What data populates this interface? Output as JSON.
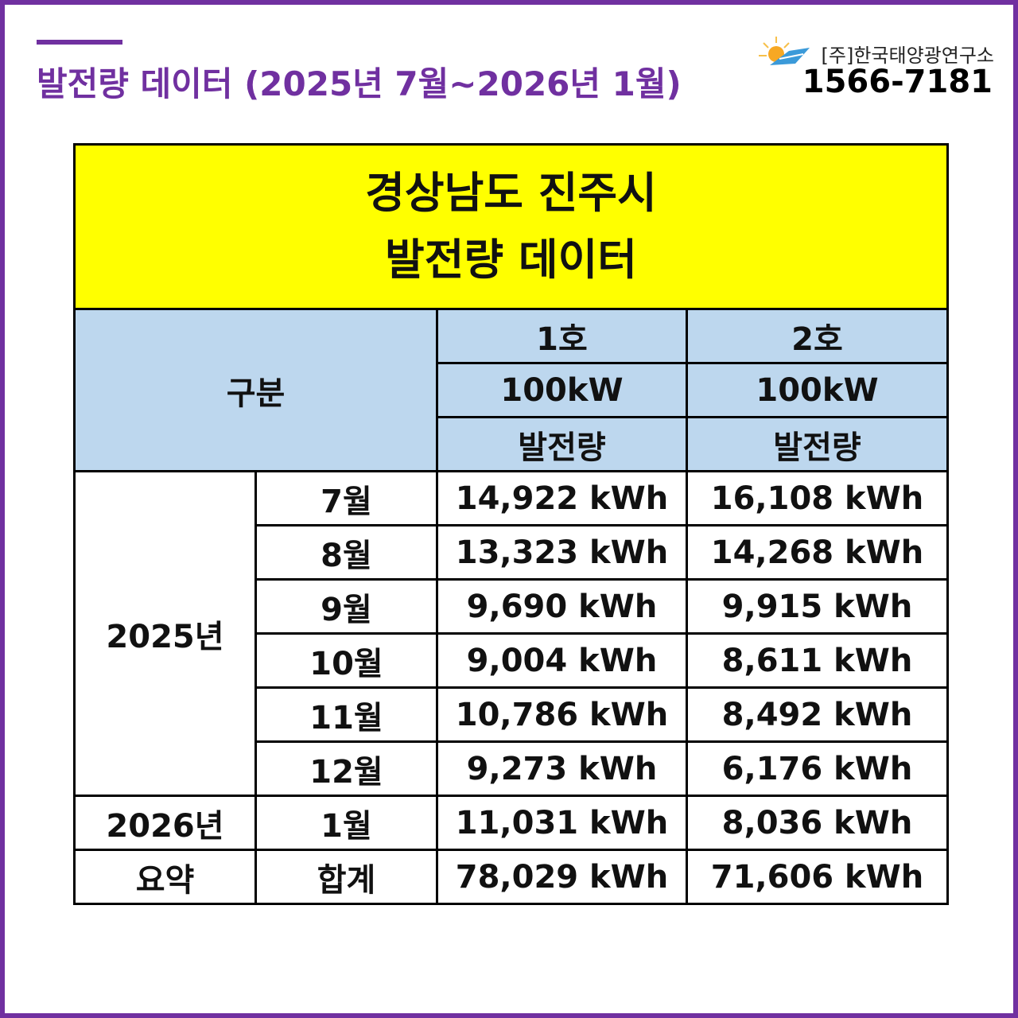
{
  "header": {
    "title": "발전량 데이터 (2025년 7월~2026년 1월)",
    "company": "[주]한국태양광연구소",
    "phone": "1566-7181"
  },
  "table": {
    "title_lines": [
      "경상남도 진주시",
      "발전량 데이터"
    ],
    "corner": "구분",
    "columns": [
      {
        "unit": "1호",
        "capacity": "100kW",
        "measure": "발전량"
      },
      {
        "unit": "2호",
        "capacity": "100kW",
        "measure": "발전량"
      }
    ],
    "groups": [
      {
        "year": "2025년",
        "rows": [
          {
            "month": "7월",
            "values": [
              "14,922 kWh",
              "16,108 kWh"
            ]
          },
          {
            "month": "8월",
            "values": [
              "13,323 kWh",
              "14,268 kWh"
            ]
          },
          {
            "month": "9월",
            "values": [
              "9,690 kWh",
              "9,915 kWh"
            ]
          },
          {
            "month": "10월",
            "values": [
              "9,004 kWh",
              "8,611 kWh"
            ]
          },
          {
            "month": "11월",
            "values": [
              "10,786 kWh",
              "8,492 kWh"
            ]
          },
          {
            "month": "12월",
            "values": [
              "9,273 kWh",
              "6,176 kWh"
            ]
          }
        ]
      },
      {
        "year": "2026년",
        "rows": [
          {
            "month": "1월",
            "values": [
              "11,031 kWh",
              "8,036 kWh"
            ]
          }
        ]
      },
      {
        "year": "요약",
        "rows": [
          {
            "month": "합계",
            "values": [
              "78,029 kWh",
              "71,606 kWh"
            ]
          }
        ]
      }
    ]
  }
}
